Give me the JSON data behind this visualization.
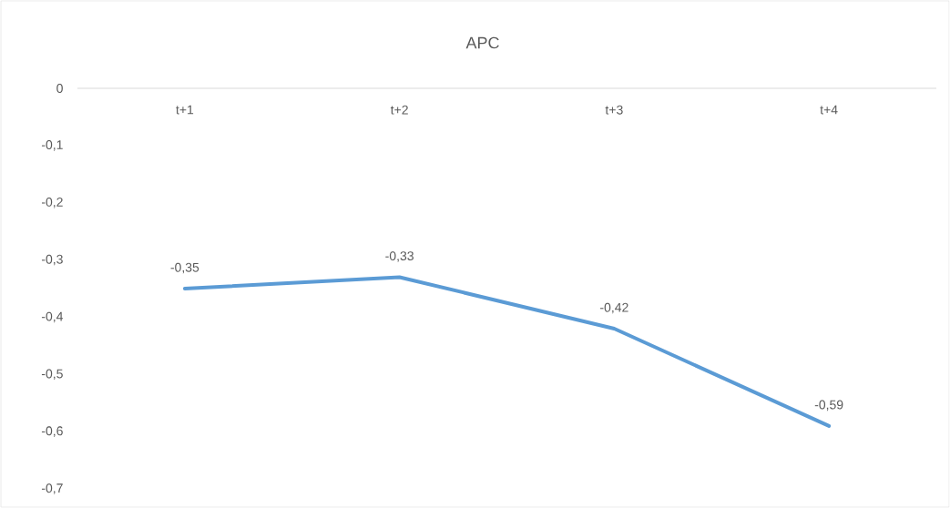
{
  "chart_data": {
    "type": "line",
    "title": "APC",
    "categories": [
      "t+1",
      "t+2",
      "t+3",
      "t+4"
    ],
    "series": [
      {
        "color": "#5b9bd5",
        "values": [
          -0.35,
          -0.33,
          -0.42,
          -0.59
        ],
        "value_labels": [
          "-0,35",
          "-0,33",
          "-0,42",
          "-0,59"
        ]
      }
    ],
    "ylim": [
      -0.7,
      0
    ],
    "yticks": [
      {
        "value": 0,
        "label": "0"
      },
      {
        "value": -0.1,
        "label": "-0,1"
      },
      {
        "value": -0.2,
        "label": "-0,2"
      },
      {
        "value": -0.3,
        "label": "-0,3"
      },
      {
        "value": -0.4,
        "label": "-0,4"
      },
      {
        "value": -0.5,
        "label": "-0,5"
      },
      {
        "value": -0.6,
        "label": "-0,6"
      },
      {
        "value": -0.7,
        "label": "-0,7"
      }
    ],
    "grid": false,
    "marker": "none",
    "line_style": "solid"
  }
}
